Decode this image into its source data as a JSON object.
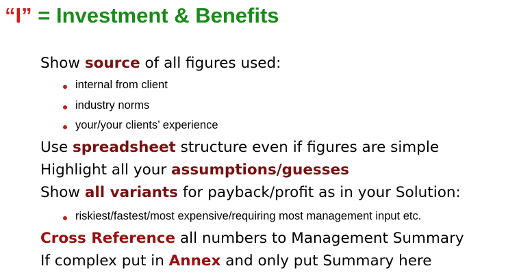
{
  "title": {
    "prefix": "“I”",
    "rest": " = Investment & Benefits"
  },
  "lines": [
    {
      "a": "Show ",
      "b": "source",
      "c": " of all figures used:"
    },
    {
      "a": "Use ",
      "b": "spreadsheet",
      "c": " structure even if figures are simple"
    },
    {
      "a": "Highlight all your ",
      "b": "assumptions/guesses",
      "c": ""
    },
    {
      "a": "Show ",
      "b": "all variants",
      "c": " for payback/profit as in your Solution:"
    },
    {
      "a": "",
      "b": "Cross Reference",
      "c": " all numbers to Management Summary"
    },
    {
      "a": "If complex put in ",
      "b": "Annex",
      "c": " and only put Summary here"
    }
  ],
  "sub_items": {
    "source": [
      "internal from client",
      "industry norms",
      "your/your clients’ experience"
    ],
    "variants": [
      "riskiest/fastest/most expensive/requiring most management input etc."
    ]
  },
  "colors": {
    "title": "#1a8a1a",
    "title_quote": "#cc2020",
    "emphasis": "#7a1010",
    "bullet": "#c0201a"
  }
}
